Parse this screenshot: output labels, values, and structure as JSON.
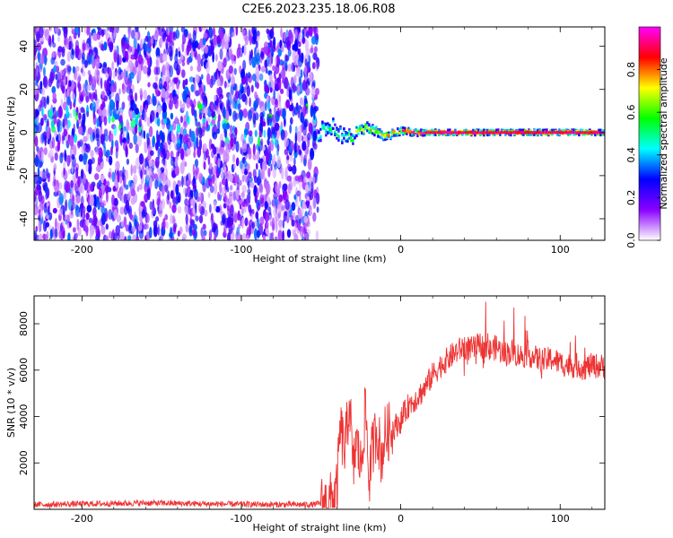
{
  "title": "C2E6.2023.235.18.06.R08",
  "chart_data": [
    {
      "type": "heatmap",
      "title": "C2E6.2023.235.18.06.R08",
      "xlabel": "Height of straight line (km)",
      "ylabel": "Frequency (Hz)",
      "xlim": [
        -230,
        128
      ],
      "ylim": [
        -50,
        49
      ],
      "x_ticks": [
        -200,
        -100,
        0,
        100
      ],
      "y_ticks": [
        -40,
        -20,
        0,
        20,
        40
      ],
      "colorbar": {
        "label": "Normalized spectral amplitude",
        "range": [
          0,
          1
        ],
        "ticks": [
          0,
          0.2,
          0.4,
          0.6,
          0.8
        ],
        "colors": [
          "#ffffff",
          "#8a00ff",
          "#0000ff",
          "#00ffff",
          "#00ff00",
          "#ffff00",
          "#ff0000",
          "#ff00ff"
        ]
      },
      "features": {
        "noise_region_x": [
          -230,
          -52
        ],
        "noise_center_frequency": 4,
        "signal_line_frequency": 0,
        "transition_x": [
          -52,
          15
        ]
      }
    },
    {
      "type": "line",
      "xlabel": "Height of straight line (km)",
      "ylabel": "SNR (10 * v/v)",
      "xlim": [
        -230,
        128
      ],
      "ylim": [
        0,
        9200
      ],
      "x_ticks": [
        -200,
        -100,
        0,
        100
      ],
      "y_ticks": [
        2000,
        4000,
        6000,
        8000
      ],
      "series": [
        {
          "color": "#ee3333",
          "x": [
            -230,
            -200,
            -160,
            -120,
            -80,
            -55,
            -45,
            -40,
            -38,
            -35,
            -32,
            -30,
            -28,
            -25,
            -22,
            -20,
            -18,
            -15,
            -12,
            -10,
            -5,
            0,
            5,
            10,
            15,
            20,
            25,
            30,
            35,
            40,
            45,
            50,
            55,
            60,
            65,
            70,
            75,
            80,
            85,
            90,
            95,
            100,
            105,
            110,
            115,
            120,
            128
          ],
          "values": [
            150,
            180,
            220,
            180,
            150,
            150,
            250,
            800,
            3500,
            2500,
            4800,
            1500,
            3000,
            1800,
            4500,
            1200,
            2500,
            3500,
            2200,
            3200,
            3500,
            3800,
            4500,
            4800,
            5200,
            5800,
            6200,
            6500,
            6800,
            7000,
            6900,
            7100,
            6800,
            7000,
            6700,
            6800,
            6600,
            6700,
            6500,
            6400,
            6500,
            6300,
            6200,
            6200,
            6100,
            6200,
            6150
          ]
        }
      ]
    }
  ]
}
